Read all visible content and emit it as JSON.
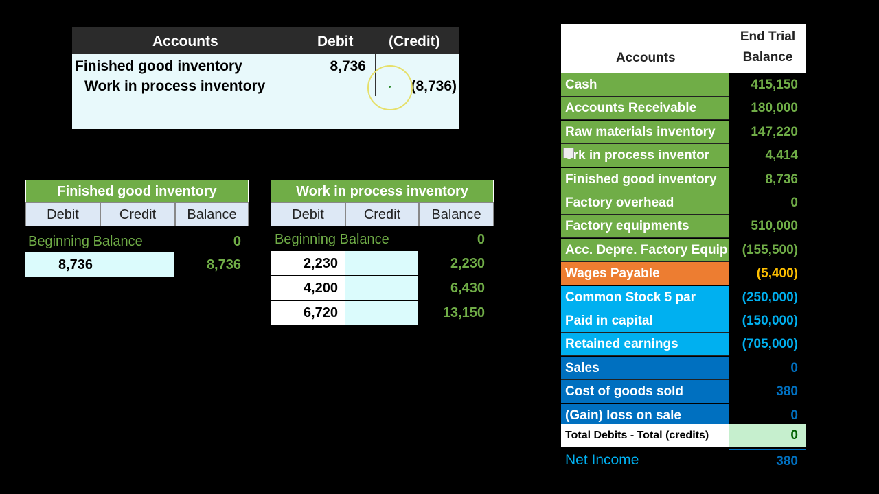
{
  "journal": {
    "headers": {
      "accounts": "Accounts",
      "debit": "Debit",
      "credit": "(Credit)"
    },
    "rows": [
      {
        "account": "Finished good inventory",
        "debit": "8,736",
        "credit": ""
      },
      {
        "account": "Work in process inventory",
        "debit": "",
        "credit": "(8,736)"
      }
    ]
  },
  "fg_tacct": {
    "title": "Finished good inventory",
    "columns": [
      "Debit",
      "Credit",
      "Balance"
    ],
    "beginning_label": "Beginning Balance",
    "beginning_value": "0",
    "rows": [
      {
        "debit": "8,736",
        "credit": "",
        "balance": "8,736"
      }
    ]
  },
  "wip_tacct": {
    "title": "Work in process inventory",
    "columns": [
      "Debit",
      "Credit",
      "Balance"
    ],
    "beginning_label": "Beginning Balance",
    "beginning_value": "0",
    "rows": [
      {
        "debit": "2,230",
        "credit": "",
        "balance": "2,230"
      },
      {
        "debit": "4,200",
        "credit": "",
        "balance": "6,430"
      },
      {
        "debit": "6,720",
        "credit": "",
        "balance": "13,150"
      }
    ]
  },
  "trial_balance": {
    "header_accounts": "Accounts",
    "header_value_line1": "End Trial",
    "header_value_line2": "Balance",
    "rows": [
      {
        "label": "Cash",
        "value": "415,150",
        "bg": "#70ad47",
        "fg": "#70ad47"
      },
      {
        "label": "Accounts Receivable",
        "value": "180,000",
        "bg": "#70ad47",
        "fg": "#70ad47"
      },
      {
        "label": "Raw materials inventory",
        "value": "147,220",
        "bg": "#70ad47",
        "fg": "#70ad47"
      },
      {
        "label": "ork in process inventor",
        "value": "4,414",
        "bg": "#70ad47",
        "fg": "#70ad47"
      },
      {
        "label": "Finished good inventory",
        "value": "8,736",
        "bg": "#70ad47",
        "fg": "#70ad47"
      },
      {
        "label": "Factory overhead",
        "value": "0",
        "bg": "#70ad47",
        "fg": "#70ad47"
      },
      {
        "label": "Factory equipments",
        "value": "510,000",
        "bg": "#70ad47",
        "fg": "#70ad47"
      },
      {
        "label": "Acc. Depre. Factory Equip",
        "value": "(155,500)",
        "bg": "#70ad47",
        "fg": "#70ad47"
      },
      {
        "label": "Wages Payable",
        "value": "(5,400)",
        "bg": "#ed7d31",
        "fg": "#ffc000"
      },
      {
        "label": "Common Stock 5 par",
        "value": "(250,000)",
        "bg": "#00b0f0",
        "fg": "#00b0f0"
      },
      {
        "label": "Paid in capital",
        "value": "(150,000)",
        "bg": "#00b0f0",
        "fg": "#00b0f0"
      },
      {
        "label": "Retained earnings",
        "value": "(705,000)",
        "bg": "#00b0f0",
        "fg": "#00b0f0"
      },
      {
        "label": "Sales",
        "value": "0",
        "bg": "#0070c0",
        "fg": "#0070c0"
      },
      {
        "label": "Cost of goods sold",
        "value": "380",
        "bg": "#0070c0",
        "fg": "#0070c0"
      },
      {
        "label": "(Gain) loss on sale",
        "value": "0",
        "bg": "#0070c0",
        "fg": "#0070c0"
      }
    ],
    "total_label": "Total Debits - Total (credits)",
    "total_value": "0",
    "net_income_label": "Net Income",
    "net_income_value": "380"
  }
}
